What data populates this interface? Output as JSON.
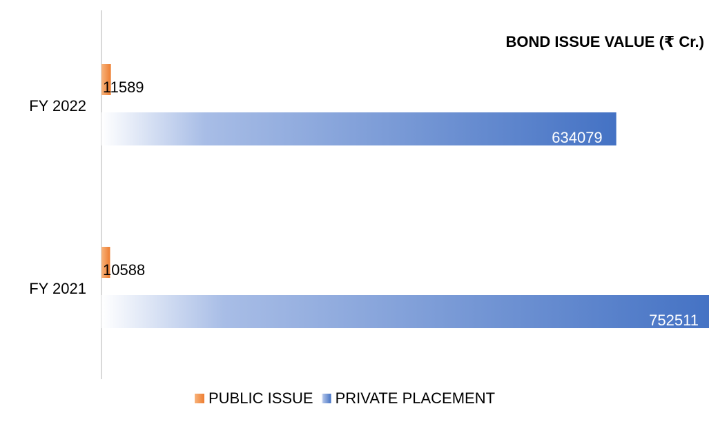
{
  "chart_data": {
    "type": "barh",
    "title": "BOND ISSUE VALUE (₹ Cr.)",
    "categories": [
      "FY 2022",
      "FY 2021"
    ],
    "series": [
      {
        "name": "PUBLIC ISSUE",
        "color": "#ed7d31",
        "values": [
          11589,
          10588
        ]
      },
      {
        "name": "PRIVATE PLACEMENT",
        "color": "#4472c4",
        "values": [
          634079,
          752511
        ]
      }
    ],
    "xlim": [
      0,
      750000
    ],
    "legend": "bottom"
  }
}
